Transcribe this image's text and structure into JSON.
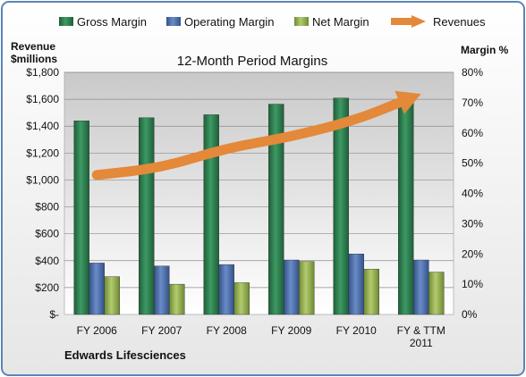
{
  "chart_data": {
    "type": "bar",
    "title": "12-Month Period Margins",
    "company": "Edwards Lifesciences",
    "left_axis_label_line1": "Revenue",
    "left_axis_label_line2": "$millions",
    "right_axis_label": "Margin %",
    "categories": [
      [
        "FY 2006"
      ],
      [
        "FY 2007"
      ],
      [
        "FY 2008"
      ],
      [
        "FY 2009"
      ],
      [
        "FY 2010"
      ],
      [
        "FY & TTM",
        "2011"
      ]
    ],
    "left_ticks": [
      "$-",
      "$200",
      "$400",
      "$600",
      "$800",
      "$1,000",
      "$1,200",
      "$1,400",
      "$1,600",
      "$1,800"
    ],
    "right_ticks": [
      "0%",
      "10%",
      "20%",
      "30%",
      "40%",
      "50%",
      "60%",
      "70%",
      "80%"
    ],
    "ylim_left": [
      0,
      1800
    ],
    "ylim_right": [
      0,
      80
    ],
    "grid": true,
    "legend_position": "top",
    "series": [
      {
        "name": "Gross Margin",
        "axis": "right",
        "kind": "bar",
        "color": "#2e7d4f",
        "values": [
          64,
          65,
          66,
          69.5,
          71.5,
          72
        ]
      },
      {
        "name": "Operating Margin",
        "axis": "right",
        "kind": "bar",
        "color": "#4f6fa8",
        "values": [
          17,
          16,
          16.5,
          18,
          20,
          18
        ]
      },
      {
        "name": "Net Margin",
        "axis": "right",
        "kind": "bar",
        "color": "#93ad52",
        "values": [
          12.5,
          10,
          10.5,
          17.5,
          15,
          14
        ]
      },
      {
        "name": "Revenues",
        "axis": "left",
        "kind": "line",
        "color": "#e4883a",
        "values": [
          1037,
          1090,
          1238,
          1321,
          1447,
          1640
        ]
      }
    ]
  }
}
